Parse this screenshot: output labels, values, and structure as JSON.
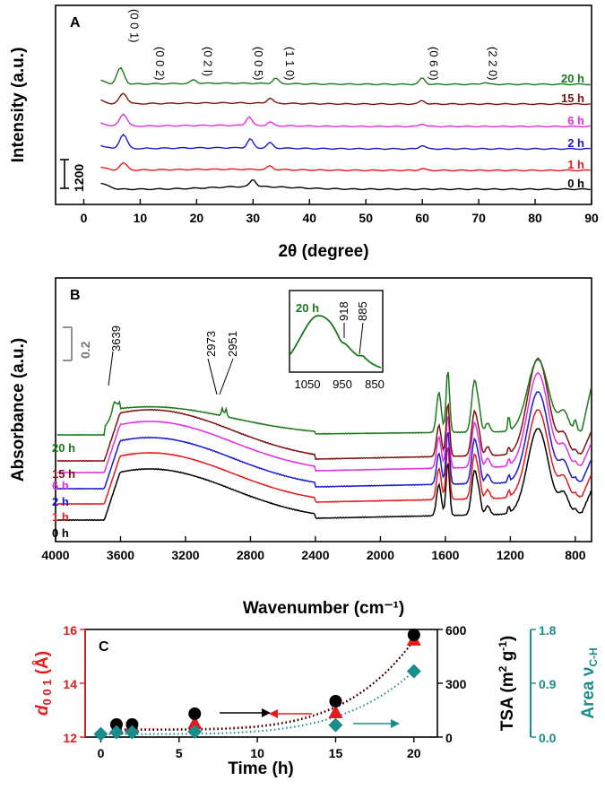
{
  "chart_data": [
    {
      "panel": "A",
      "type": "line",
      "xlabel": "2θ (degree)",
      "ylabel": "Intensity (a.u.)",
      "xlim": [
        -5,
        90
      ],
      "xticks": [
        0,
        10,
        20,
        30,
        40,
        50,
        60,
        70,
        80,
        90
      ],
      "scale_bar": "1200",
      "reflections": [
        {
          "label": "(0 0 1)",
          "x": 7.5
        },
        {
          "label": "(0 0 2)",
          "x": 12
        },
        {
          "label": "(0 2 l)",
          "x": 20.5
        },
        {
          "label": "(0 0 5)",
          "x": 29.5
        },
        {
          "label": "(1 1 0)",
          "x": 35
        },
        {
          "label": "(0 6 0)",
          "x": 60.5
        },
        {
          "label": "(2 2 0)",
          "x": 71
        }
      ],
      "series": [
        {
          "name": "0 h",
          "color": "#000000",
          "offset": 0,
          "peaks": [
            [
              7,
              0
            ],
            [
              30,
              8
            ]
          ]
        },
        {
          "name": "1 h",
          "color": "#e41a1c",
          "offset": 21,
          "peaks": [
            [
              7,
              8
            ],
            [
              33,
              4
            ],
            [
              60,
              2
            ]
          ]
        },
        {
          "name": "2 h",
          "color": "#1a1acc",
          "offset": 45,
          "peaks": [
            [
              7,
              16
            ],
            [
              29.5,
              10
            ],
            [
              33,
              6
            ],
            [
              60,
              4
            ]
          ]
        },
        {
          "name": "6 h",
          "color": "#e030e0",
          "offset": 70,
          "peaks": [
            [
              7,
              14
            ],
            [
              29.3,
              10
            ],
            [
              33,
              4
            ],
            [
              60,
              3
            ]
          ]
        },
        {
          "name": "15 h",
          "color": "#7b1111",
          "offset": 95,
          "peaks": [
            [
              7,
              12
            ],
            [
              33,
              6
            ],
            [
              60,
              4
            ]
          ]
        },
        {
          "name": "20 h",
          "color": "#1a7a1a",
          "offset": 117,
          "peaks": [
            [
              6.5,
              18
            ],
            [
              19.5,
              4
            ],
            [
              34,
              6
            ],
            [
              60,
              7
            ],
            [
              71,
              2
            ]
          ]
        }
      ]
    },
    {
      "panel": "B",
      "type": "line",
      "xlabel": "Wavenumber (cm⁻¹)",
      "ylabel": "Absorbance (a.u.)",
      "xlim": [
        4000,
        700
      ],
      "xticks": [
        4000,
        3600,
        3200,
        2800,
        2400,
        2000,
        1600,
        1200,
        800
      ],
      "scale_bar": "0.2",
      "peak_labels": [
        "3639",
        "2973",
        "2951"
      ],
      "inset": {
        "label": "20 h",
        "xticks": [
          1050,
          950,
          850
        ],
        "peak_labels": [
          "918",
          "885"
        ]
      },
      "series": [
        {
          "name": "0 h",
          "color": "#000000",
          "offset": 0
        },
        {
          "name": "1 h",
          "color": "#e41a1c",
          "offset": 18
        },
        {
          "name": "2 h",
          "color": "#1a1acc",
          "offset": 35
        },
        {
          "name": "6 h",
          "color": "#e030e0",
          "offset": 53
        },
        {
          "name": "15 h",
          "color": "#7b1111",
          "offset": 66
        },
        {
          "name": "20 h",
          "color": "#1a7a1a",
          "offset": 95
        }
      ]
    },
    {
      "panel": "C",
      "type": "scatter",
      "xlabel": "Time (h)",
      "xlim": [
        -1,
        21.5
      ],
      "xticks": [
        0,
        5,
        10,
        15,
        20
      ],
      "x": [
        0,
        1,
        2,
        6,
        15,
        20
      ],
      "axes": {
        "left": {
          "label": "d",
          "sub": "0 0 1",
          "unit": " (Å)",
          "range": [
            12,
            16
          ],
          "ticks": [
            12,
            14,
            16
          ],
          "color": "#e41a1c"
        },
        "right1": {
          "label": "TSA (m",
          "sup": "2",
          "unit2": " g",
          "sup2": "-1",
          "close": ")",
          "range": [
            0,
            600
          ],
          "ticks": [
            0,
            300,
            600
          ],
          "color": "#000000"
        },
        "right2": {
          "label": "Area ν",
          "sub": "C-H",
          "range": [
            0,
            1.8
          ],
          "ticks": [
            "0.0",
            "0.9",
            "1.8"
          ],
          "color": "#1b8c8c"
        }
      },
      "series": [
        {
          "name": "d001",
          "marker": "triangle",
          "color": "#e41a1c",
          "x": [
            1,
            2,
            6,
            15,
            20
          ],
          "values": [
            12.3,
            12.4,
            12.5,
            12.9,
            15.6
          ]
        },
        {
          "name": "TSA",
          "marker": "circle",
          "color": "#000000",
          "x": [
            1,
            2,
            6,
            15,
            20
          ],
          "values": [
            40,
            40,
            100,
            170,
            540
          ]
        },
        {
          "name": "Area C-H",
          "marker": "diamond",
          "color": "#1b8c8c",
          "x": [
            0,
            1,
            2,
            6,
            15,
            20
          ],
          "values": [
            0.05,
            0.08,
            0.08,
            0.09,
            0.2,
            1.1
          ]
        }
      ]
    }
  ]
}
